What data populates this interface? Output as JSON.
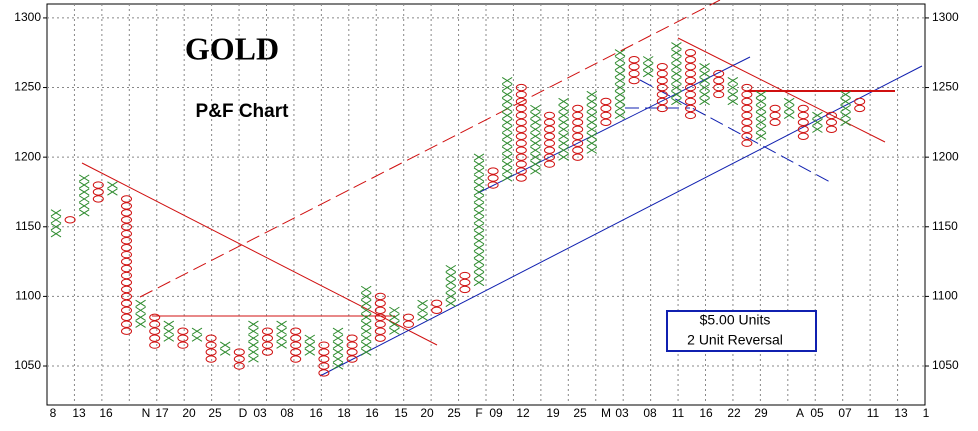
{
  "chart_data": {
    "type": "pnf",
    "title": "GOLD",
    "subtitle": "P&F Chart",
    "note_lines": [
      "$5.00 Units",
      "2 Unit Reversal"
    ],
    "box_size": 5,
    "x_color": "#2e8b2e",
    "o_color": "#d01010",
    "ylim": [
      1022,
      1310
    ],
    "yticks": [
      1050,
      1100,
      1150,
      1200,
      1250,
      1300
    ],
    "grid": true,
    "x_labels": [
      "8",
      "13",
      "16",
      "N",
      "17",
      "20",
      "25",
      "D",
      "03",
      "08",
      "16",
      "18",
      "16",
      "15",
      "20",
      "25",
      "F",
      "09",
      "12",
      "19",
      "25",
      "M",
      "03",
      "08",
      "11",
      "16",
      "22",
      "29",
      "A",
      "05",
      "07",
      "11",
      "13",
      "1"
    ],
    "columns": [
      {
        "type": "X",
        "low": 1145,
        "high": 1160
      },
      {
        "type": "O",
        "low": 1155,
        "high": 1155
      },
      {
        "type": "X",
        "low": 1160,
        "high": 1185
      },
      {
        "type": "O",
        "low": 1170,
        "high": 1180
      },
      {
        "type": "X",
        "low": 1175,
        "high": 1180
      },
      {
        "type": "O",
        "low": 1075,
        "high": 1170
      },
      {
        "type": "X",
        "low": 1080,
        "high": 1095
      },
      {
        "type": "O",
        "low": 1065,
        "high": 1085
      },
      {
        "type": "X",
        "low": 1070,
        "high": 1080
      },
      {
        "type": "O",
        "low": 1065,
        "high": 1075
      },
      {
        "type": "X",
        "low": 1070,
        "high": 1075
      },
      {
        "type": "O",
        "low": 1055,
        "high": 1070
      },
      {
        "type": "X",
        "low": 1060,
        "high": 1065
      },
      {
        "type": "O",
        "low": 1050,
        "high": 1060
      },
      {
        "type": "X",
        "low": 1055,
        "high": 1080
      },
      {
        "type": "O",
        "low": 1060,
        "high": 1075
      },
      {
        "type": "X",
        "low": 1065,
        "high": 1080
      },
      {
        "type": "O",
        "low": 1055,
        "high": 1075
      },
      {
        "type": "X",
        "low": 1060,
        "high": 1070
      },
      {
        "type": "O",
        "low": 1045,
        "high": 1065
      },
      {
        "type": "X",
        "low": 1050,
        "high": 1075
      },
      {
        "type": "O",
        "low": 1055,
        "high": 1070
      },
      {
        "type": "X",
        "low": 1060,
        "high": 1105
      },
      {
        "type": "O",
        "low": 1070,
        "high": 1100
      },
      {
        "type": "X",
        "low": 1075,
        "high": 1090
      },
      {
        "type": "O",
        "low": 1080,
        "high": 1085
      },
      {
        "type": "X",
        "low": 1085,
        "high": 1095
      },
      {
        "type": "O",
        "low": 1090,
        "high": 1095
      },
      {
        "type": "X",
        "low": 1095,
        "high": 1120
      },
      {
        "type": "O",
        "low": 1105,
        "high": 1115
      },
      {
        "type": "X",
        "low": 1110,
        "high": 1200
      },
      {
        "type": "O",
        "low": 1180,
        "high": 1190
      },
      {
        "type": "X",
        "low": 1185,
        "high": 1255
      },
      {
        "type": "O",
        "low": 1185,
        "high": 1250
      },
      {
        "type": "X",
        "low": 1190,
        "high": 1235
      },
      {
        "type": "O",
        "low": 1195,
        "high": 1230
      },
      {
        "type": "X",
        "low": 1200,
        "high": 1240
      },
      {
        "type": "O",
        "low": 1200,
        "high": 1235
      },
      {
        "type": "X",
        "low": 1205,
        "high": 1245
      },
      {
        "type": "O",
        "low": 1225,
        "high": 1240
      },
      {
        "type": "X",
        "low": 1230,
        "high": 1275
      },
      {
        "type": "O",
        "low": 1255,
        "high": 1270
      },
      {
        "type": "X",
        "low": 1260,
        "high": 1270
      },
      {
        "type": "O",
        "low": 1235,
        "high": 1265
      },
      {
        "type": "X",
        "low": 1240,
        "high": 1280
      },
      {
        "type": "O",
        "low": 1230,
        "high": 1275
      },
      {
        "type": "X",
        "low": 1240,
        "high": 1265
      },
      {
        "type": "O",
        "low": 1245,
        "high": 1260
      },
      {
        "type": "X",
        "low": 1240,
        "high": 1255
      },
      {
        "type": "O",
        "low": 1210,
        "high": 1250
      },
      {
        "type": "X",
        "low": 1215,
        "high": 1245
      },
      {
        "type": "O",
        "low": 1225,
        "high": 1235
      },
      {
        "type": "X",
        "low": 1230,
        "high": 1240
      },
      {
        "type": "O",
        "low": 1215,
        "high": 1235
      },
      {
        "type": "X",
        "low": 1220,
        "high": 1230
      },
      {
        "type": "O",
        "low": 1220,
        "high": 1230
      },
      {
        "type": "X",
        "low": 1225,
        "high": 1245
      },
      {
        "type": "O",
        "low": 1235,
        "high": 1240
      }
    ]
  }
}
